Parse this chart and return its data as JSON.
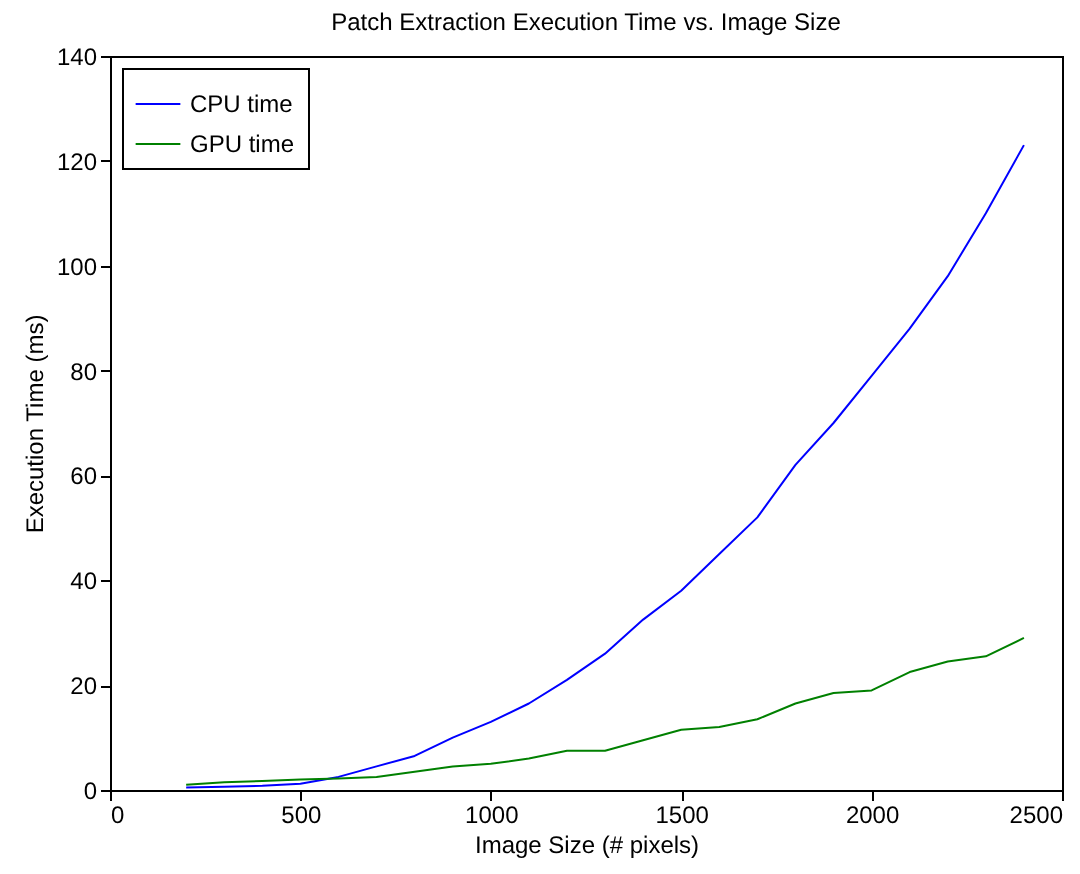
{
  "chart_data": {
    "type": "line",
    "title": "Patch Extraction Execution Time vs. Image Size",
    "xlabel": "Image Size (# pixels)",
    "ylabel": "Execution Time (ms)",
    "x": [
      200,
      300,
      400,
      500,
      600,
      700,
      800,
      900,
      1000,
      1100,
      1200,
      1300,
      1400,
      1500,
      1600,
      1700,
      1800,
      1900,
      2000,
      2100,
      2200,
      2300,
      2400
    ],
    "series": [
      {
        "name": "CPU time",
        "color": "#0000ff",
        "values": [
          0.5,
          0.6,
          0.8,
          1.2,
          2.5,
          4.5,
          6.5,
          10,
          13,
          16.5,
          21,
          26,
          32.5,
          38,
          45,
          52,
          62,
          70,
          79,
          88,
          98,
          110,
          123
        ]
      },
      {
        "name": "GPU time",
        "color": "#008000",
        "values": [
          1,
          1.5,
          1.7,
          2,
          2.2,
          2.5,
          3.5,
          4.5,
          5,
          6,
          7.5,
          7.5,
          9.5,
          11.5,
          12,
          13.5,
          16.5,
          18.5,
          19,
          22.5,
          24.5,
          25.5,
          29
        ]
      }
    ],
    "xlim": [
      0,
      2500
    ],
    "xticks": [
      0,
      500,
      1000,
      1500,
      2000,
      2500
    ],
    "ylim": [
      0,
      140
    ],
    "yticks": [
      0,
      20,
      40,
      60,
      80,
      100,
      120,
      140
    ],
    "grid": false,
    "legend": "top left",
    "marker": "none",
    "line_style": "solid"
  }
}
